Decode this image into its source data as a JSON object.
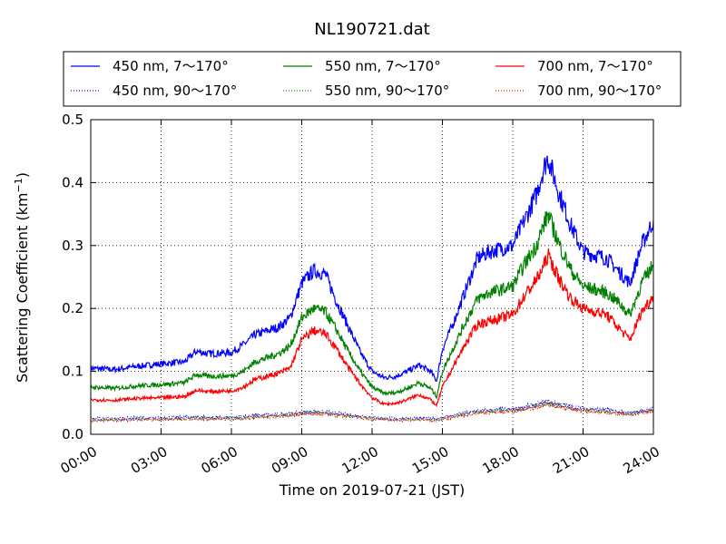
{
  "chart_data": {
    "type": "line",
    "title": "NL190721.dat",
    "xlabel": "Time on 2019-07-21 (JST)",
    "ylabel_main": "Scattering Coefficient (km",
    "ylabel_sup": "−1",
    "ylabel_close": ")",
    "xlim": [
      0,
      24
    ],
    "ylim": [
      0,
      0.5
    ],
    "grid": true,
    "legend_position": "top",
    "x_ticks": [
      0,
      3,
      6,
      9,
      12,
      15,
      18,
      21,
      24
    ],
    "x_tick_labels": [
      "00:00",
      "03:00",
      "06:00",
      "09:00",
      "12:00",
      "15:00",
      "18:00",
      "21:00",
      "24:00"
    ],
    "y_ticks": [
      0,
      0.1,
      0.2,
      0.3,
      0.4,
      0.5
    ],
    "y_tick_labels": [
      "0.0",
      "0.1",
      "0.2",
      "0.3",
      "0.4",
      "0.5"
    ],
    "x": [
      0,
      1,
      2,
      3,
      4,
      4.5,
      5,
      6,
      6.5,
      7,
      8,
      8.5,
      9,
      9.5,
      10,
      10.5,
      11,
      11.5,
      12,
      12.5,
      13,
      13.5,
      14,
      14.5,
      14.75,
      15,
      15.5,
      16,
      16.5,
      17,
      18,
      18.5,
      19,
      19.3,
      19.5,
      20,
      20.5,
      21,
      22,
      22.5,
      23,
      23.5,
      24
    ],
    "series": [
      {
        "name": "450 nm, 7～170°",
        "color": "#0000ff",
        "style": "solid",
        "values": [
          0.105,
          0.103,
          0.108,
          0.112,
          0.115,
          0.132,
          0.128,
          0.13,
          0.142,
          0.158,
          0.17,
          0.185,
          0.24,
          0.26,
          0.255,
          0.21,
          0.17,
          0.13,
          0.1,
          0.09,
          0.092,
          0.1,
          0.11,
          0.1,
          0.085,
          0.135,
          0.18,
          0.23,
          0.28,
          0.29,
          0.3,
          0.34,
          0.38,
          0.42,
          0.44,
          0.38,
          0.33,
          0.29,
          0.28,
          0.26,
          0.24,
          0.3,
          0.34
        ]
      },
      {
        "name": "450 nm, 90～170°",
        "color": "#0000ff",
        "style": "dotted",
        "values": [
          0.025,
          0.025,
          0.026,
          0.026,
          0.027,
          0.028,
          0.027,
          0.027,
          0.028,
          0.03,
          0.031,
          0.033,
          0.035,
          0.036,
          0.035,
          0.033,
          0.031,
          0.029,
          0.027,
          0.026,
          0.025,
          0.025,
          0.026,
          0.025,
          0.024,
          0.027,
          0.03,
          0.034,
          0.037,
          0.038,
          0.04,
          0.043,
          0.047,
          0.05,
          0.052,
          0.048,
          0.044,
          0.041,
          0.039,
          0.036,
          0.034,
          0.037,
          0.04
        ]
      },
      {
        "name": "550 nm, 7～170°",
        "color": "#008000",
        "style": "solid",
        "values": [
          0.075,
          0.073,
          0.077,
          0.079,
          0.082,
          0.095,
          0.092,
          0.093,
          0.1,
          0.115,
          0.128,
          0.14,
          0.185,
          0.2,
          0.195,
          0.165,
          0.13,
          0.1,
          0.075,
          0.065,
          0.066,
          0.073,
          0.082,
          0.073,
          0.06,
          0.1,
          0.14,
          0.18,
          0.215,
          0.225,
          0.235,
          0.27,
          0.3,
          0.33,
          0.35,
          0.3,
          0.26,
          0.235,
          0.225,
          0.21,
          0.19,
          0.24,
          0.27
        ]
      },
      {
        "name": "550 nm, 90～170°",
        "color": "#008000",
        "style": "dotted",
        "values": [
          0.023,
          0.023,
          0.024,
          0.024,
          0.025,
          0.026,
          0.025,
          0.025,
          0.026,
          0.028,
          0.029,
          0.031,
          0.033,
          0.034,
          0.033,
          0.031,
          0.029,
          0.027,
          0.025,
          0.024,
          0.023,
          0.023,
          0.024,
          0.023,
          0.022,
          0.025,
          0.028,
          0.032,
          0.035,
          0.036,
          0.038,
          0.041,
          0.044,
          0.047,
          0.049,
          0.045,
          0.041,
          0.038,
          0.036,
          0.034,
          0.032,
          0.035,
          0.038
        ]
      },
      {
        "name": "700 nm, 7～170°",
        "color": "#ff0000",
        "style": "solid",
        "values": [
          0.055,
          0.054,
          0.057,
          0.058,
          0.06,
          0.07,
          0.068,
          0.069,
          0.075,
          0.087,
          0.097,
          0.105,
          0.15,
          0.165,
          0.16,
          0.135,
          0.105,
          0.08,
          0.058,
          0.048,
          0.049,
          0.055,
          0.063,
          0.055,
          0.045,
          0.075,
          0.11,
          0.145,
          0.175,
          0.18,
          0.19,
          0.22,
          0.245,
          0.265,
          0.285,
          0.245,
          0.215,
          0.2,
          0.19,
          0.17,
          0.15,
          0.195,
          0.22
        ]
      },
      {
        "name": "700 nm, 90～170°",
        "color": "#ff0000",
        "style": "dotted",
        "values": [
          0.022,
          0.022,
          0.023,
          0.023,
          0.024,
          0.025,
          0.024,
          0.024,
          0.025,
          0.027,
          0.028,
          0.03,
          0.032,
          0.033,
          0.032,
          0.03,
          0.028,
          0.026,
          0.024,
          0.023,
          0.022,
          0.022,
          0.023,
          0.022,
          0.021,
          0.024,
          0.027,
          0.031,
          0.034,
          0.035,
          0.037,
          0.04,
          0.043,
          0.046,
          0.048,
          0.044,
          0.04,
          0.037,
          0.035,
          0.033,
          0.031,
          0.034,
          0.037
        ]
      }
    ]
  }
}
